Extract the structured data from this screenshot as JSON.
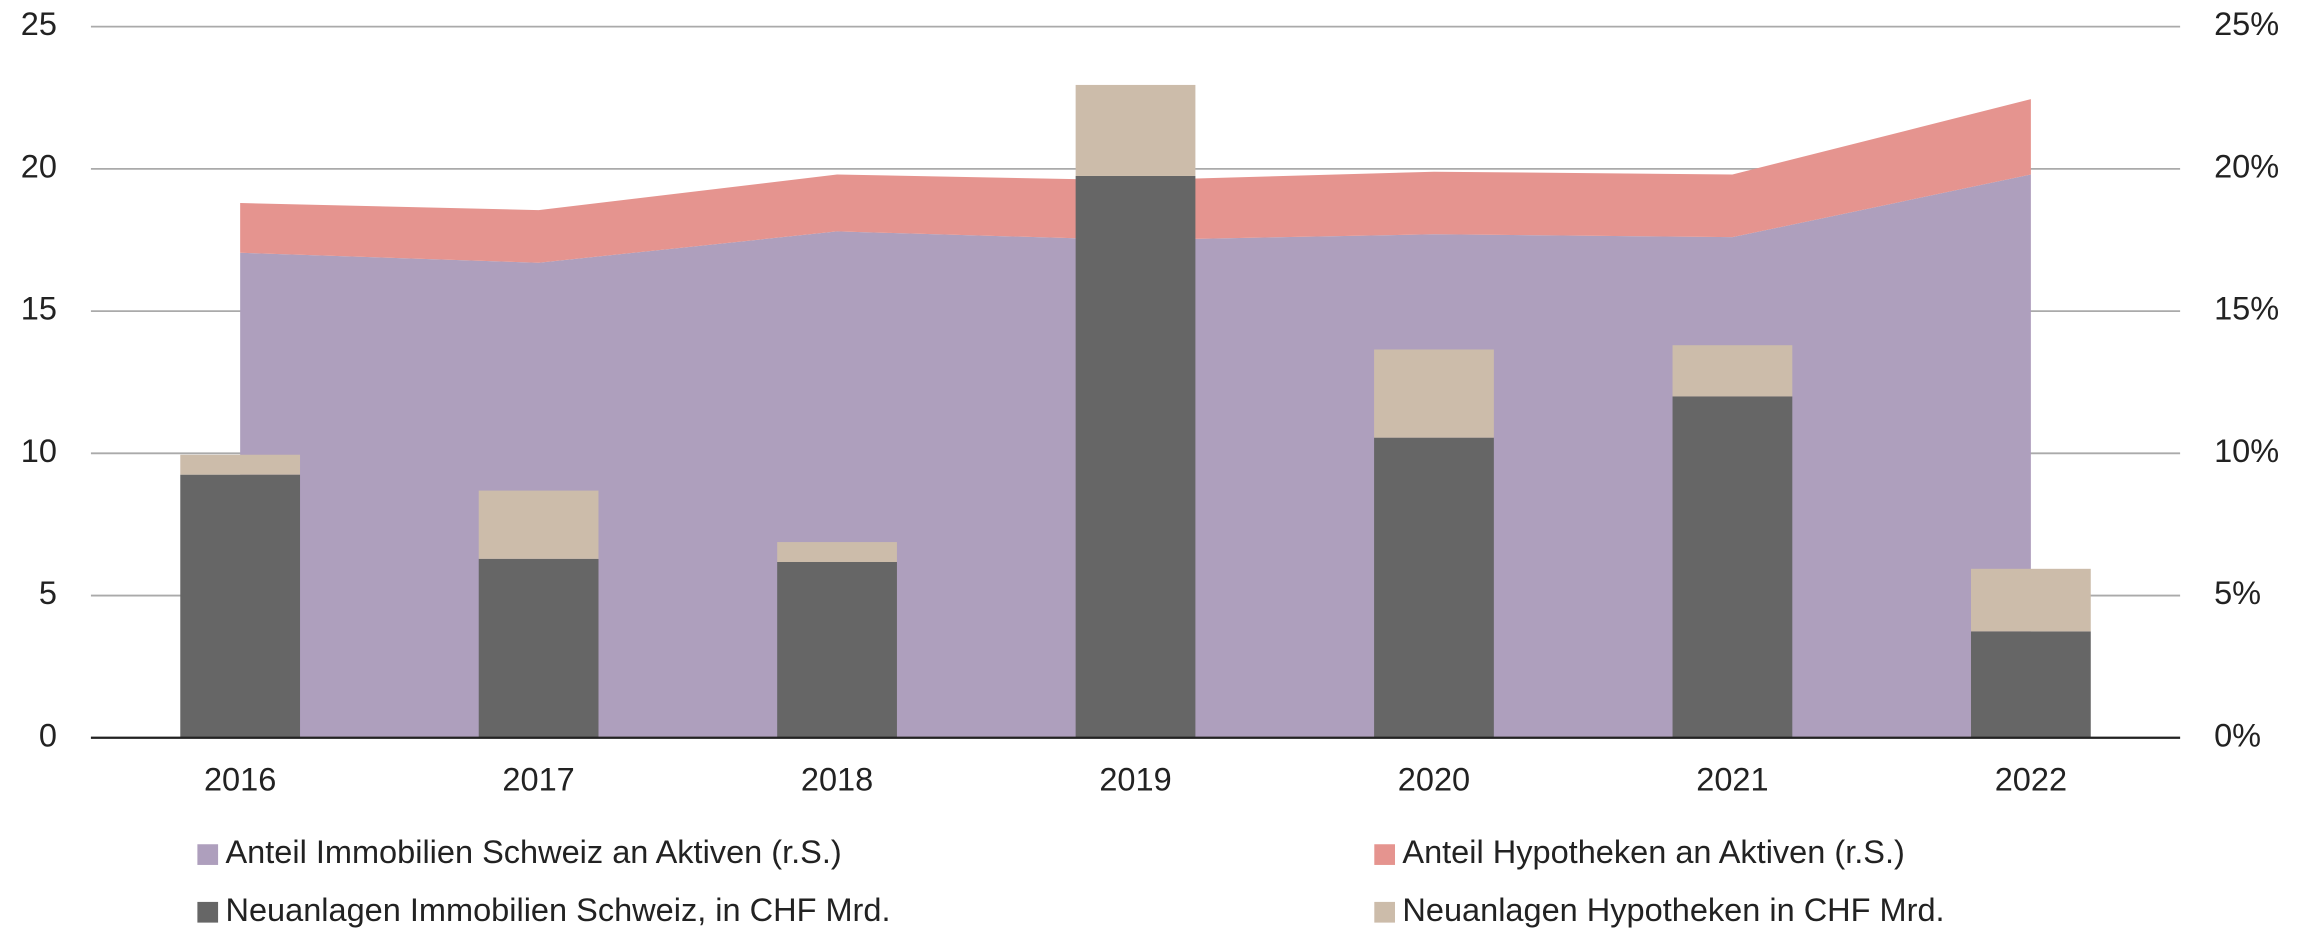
{
  "chart_data": {
    "type": "bar",
    "categories": [
      "2016",
      "2017",
      "2018",
      "2019",
      "2020",
      "2021",
      "2022"
    ],
    "series": [
      {
        "name": "Anteil Immobilien Schweiz an Aktiven (r.S.)",
        "type": "area",
        "axis": "y2",
        "color": "#ae9fbd",
        "values": [
          17.05,
          16.7,
          17.8,
          17.5,
          17.7,
          17.6,
          19.8
        ]
      },
      {
        "name": "Anteil Hypotheken an Aktiven (r.S.)",
        "type": "area",
        "axis": "y2",
        "color": "#e5948f",
        "values": [
          1.75,
          1.85,
          2.0,
          2.1,
          2.2,
          2.2,
          2.65
        ]
      },
      {
        "name": "Neuanlagen Immobilien Schweiz, in CHF Mrd.",
        "type": "bar",
        "color": "#666666",
        "values": [
          9.25,
          6.29,
          6.18,
          19.75,
          10.55,
          12.0,
          3.74
        ]
      },
      {
        "name": "Neuanlagen Hypotheken in CHF Mrd.",
        "type": "bar",
        "color": "#ccbcaa",
        "values": [
          0.7,
          2.4,
          0.7,
          3.2,
          3.1,
          1.8,
          2.2
        ]
      }
    ],
    "stacked": true,
    "ylim": [
      0,
      25
    ],
    "yticks": [
      0,
      5,
      10,
      15,
      20,
      25
    ],
    "y2lim": [
      0,
      25
    ],
    "y2ticks": [
      {
        "value": 0,
        "label": "0%"
      },
      {
        "value": 5,
        "label": "5%"
      },
      {
        "value": 10,
        "label": "10%"
      },
      {
        "value": 15,
        "label": "15%"
      },
      {
        "value": 20,
        "label": "20%"
      },
      {
        "value": 25,
        "label": "25%"
      }
    ],
    "grid": true
  }
}
